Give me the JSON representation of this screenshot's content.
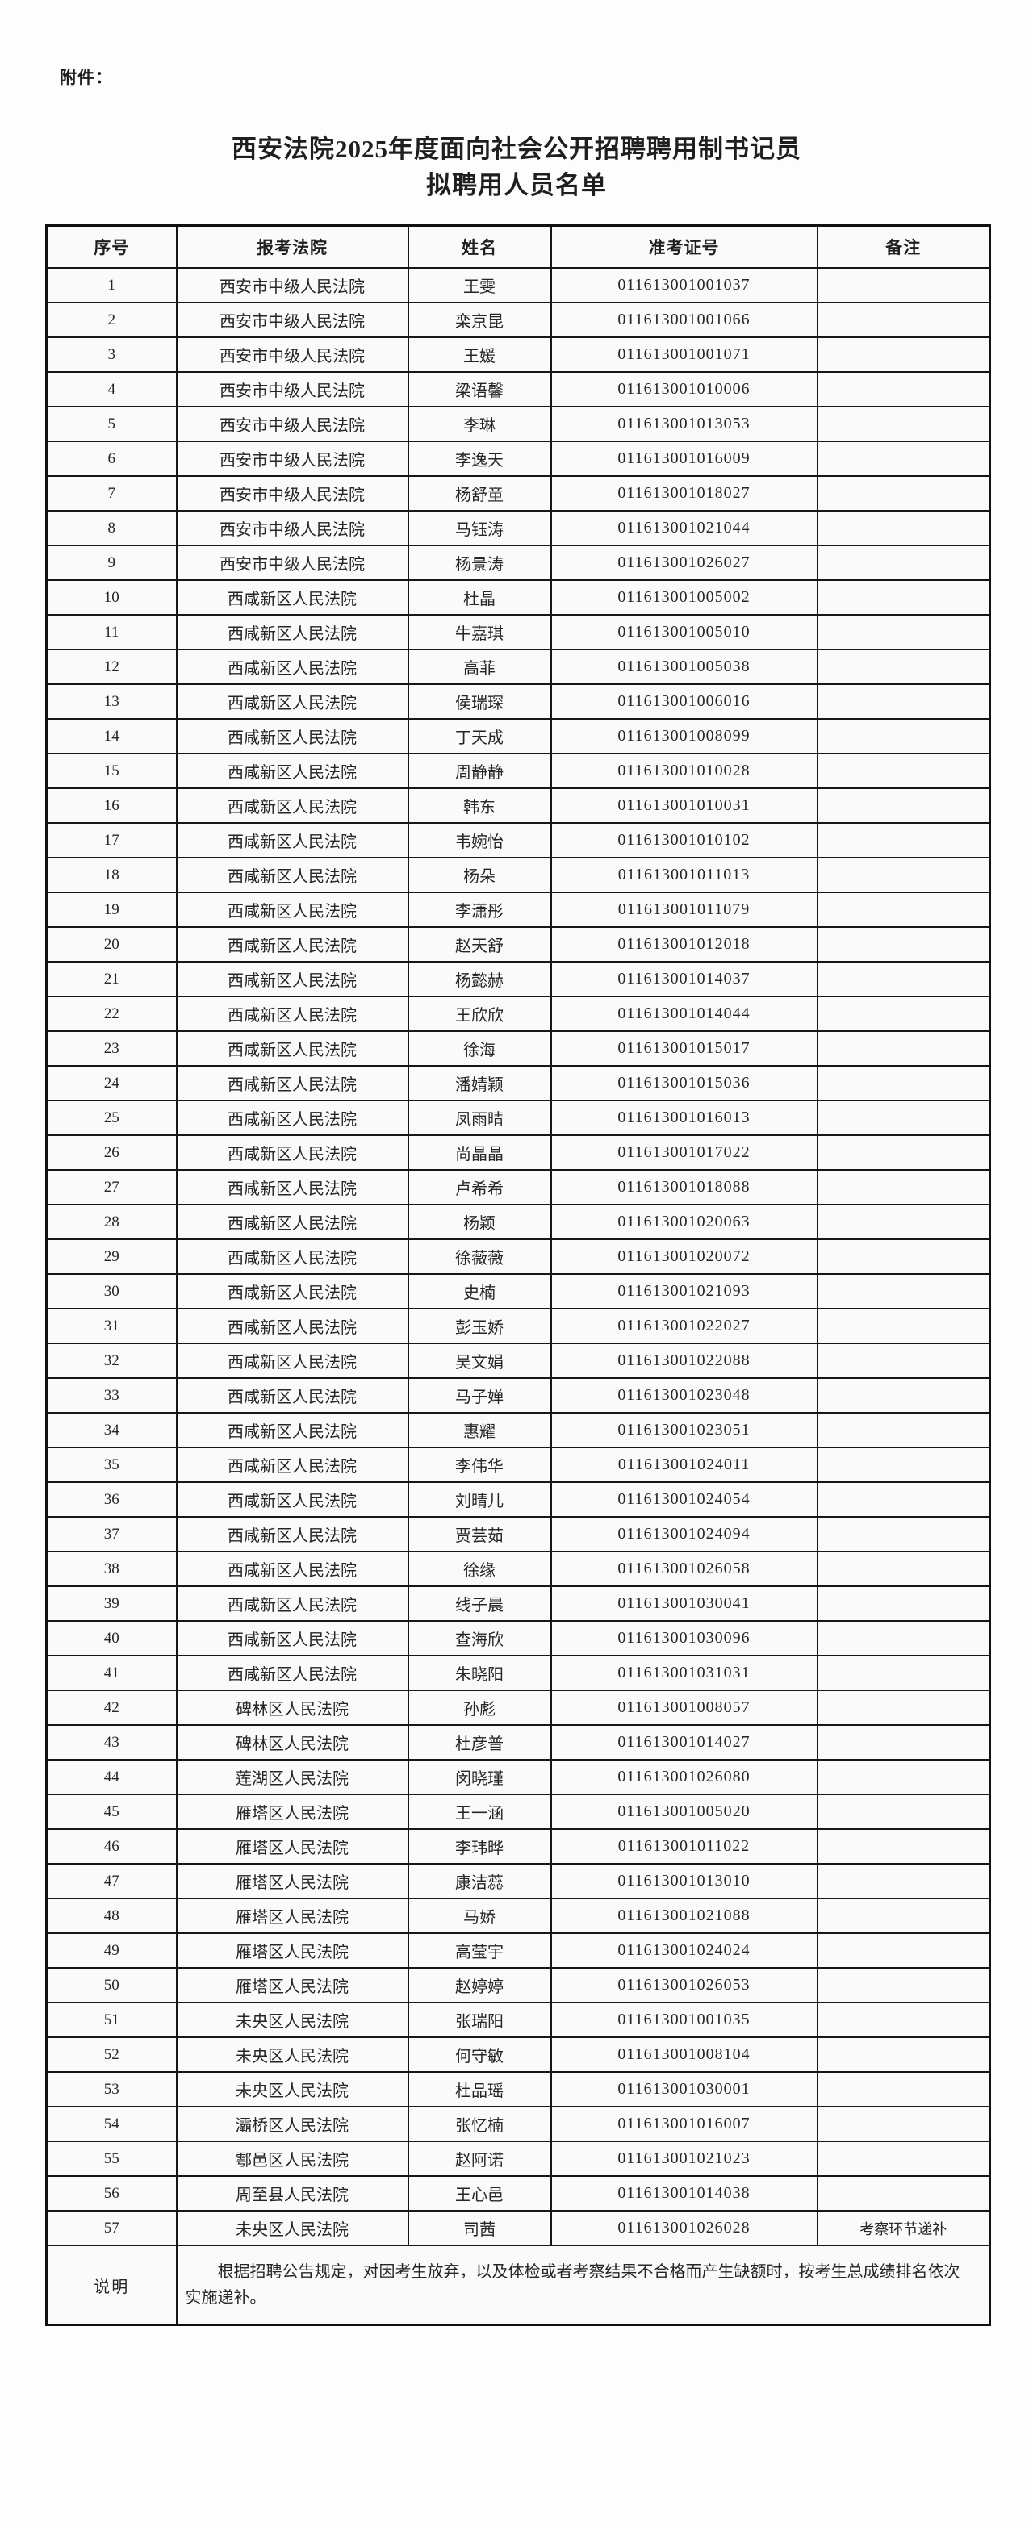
{
  "attachment_label": "附件：",
  "title_line1": "西安法院2025年度面向社会公开招聘聘用制书记员",
  "title_line2": "拟聘用人员名单",
  "table": {
    "headers": [
      "序号",
      "报考法院",
      "姓名",
      "准考证号",
      "备注"
    ],
    "rows": [
      [
        "1",
        "西安市中级人民法院",
        "王雯",
        "011613001001037",
        ""
      ],
      [
        "2",
        "西安市中级人民法院",
        "栾京昆",
        "011613001001066",
        ""
      ],
      [
        "3",
        "西安市中级人民法院",
        "王媛",
        "011613001001071",
        ""
      ],
      [
        "4",
        "西安市中级人民法院",
        "梁语馨",
        "011613001010006",
        ""
      ],
      [
        "5",
        "西安市中级人民法院",
        "李琳",
        "011613001013053",
        ""
      ],
      [
        "6",
        "西安市中级人民法院",
        "李逸天",
        "011613001016009",
        ""
      ],
      [
        "7",
        "西安市中级人民法院",
        "杨舒童",
        "011613001018027",
        ""
      ],
      [
        "8",
        "西安市中级人民法院",
        "马钰涛",
        "011613001021044",
        ""
      ],
      [
        "9",
        "西安市中级人民法院",
        "杨景涛",
        "011613001026027",
        ""
      ],
      [
        "10",
        "西咸新区人民法院",
        "杜晶",
        "011613001005002",
        ""
      ],
      [
        "11",
        "西咸新区人民法院",
        "牛嘉琪",
        "011613001005010",
        ""
      ],
      [
        "12",
        "西咸新区人民法院",
        "高菲",
        "011613001005038",
        ""
      ],
      [
        "13",
        "西咸新区人民法院",
        "侯瑞琛",
        "011613001006016",
        ""
      ],
      [
        "14",
        "西咸新区人民法院",
        "丁天成",
        "011613001008099",
        ""
      ],
      [
        "15",
        "西咸新区人民法院",
        "周静静",
        "011613001010028",
        ""
      ],
      [
        "16",
        "西咸新区人民法院",
        "韩东",
        "011613001010031",
        ""
      ],
      [
        "17",
        "西咸新区人民法院",
        "韦婉怡",
        "011613001010102",
        ""
      ],
      [
        "18",
        "西咸新区人民法院",
        "杨朵",
        "011613001011013",
        ""
      ],
      [
        "19",
        "西咸新区人民法院",
        "李潇彤",
        "011613001011079",
        ""
      ],
      [
        "20",
        "西咸新区人民法院",
        "赵天舒",
        "011613001012018",
        ""
      ],
      [
        "21",
        "西咸新区人民法院",
        "杨懿赫",
        "011613001014037",
        ""
      ],
      [
        "22",
        "西咸新区人民法院",
        "王欣欣",
        "011613001014044",
        ""
      ],
      [
        "23",
        "西咸新区人民法院",
        "徐海",
        "011613001015017",
        ""
      ],
      [
        "24",
        "西咸新区人民法院",
        "潘婧颖",
        "011613001015036",
        ""
      ],
      [
        "25",
        "西咸新区人民法院",
        "凤雨晴",
        "011613001016013",
        ""
      ],
      [
        "26",
        "西咸新区人民法院",
        "尚晶晶",
        "011613001017022",
        ""
      ],
      [
        "27",
        "西咸新区人民法院",
        "卢希希",
        "011613001018088",
        ""
      ],
      [
        "28",
        "西咸新区人民法院",
        "杨颖",
        "011613001020063",
        ""
      ],
      [
        "29",
        "西咸新区人民法院",
        "徐薇薇",
        "011613001020072",
        ""
      ],
      [
        "30",
        "西咸新区人民法院",
        "史楠",
        "011613001021093",
        ""
      ],
      [
        "31",
        "西咸新区人民法院",
        "彭玉娇",
        "011613001022027",
        ""
      ],
      [
        "32",
        "西咸新区人民法院",
        "吴文娟",
        "011613001022088",
        ""
      ],
      [
        "33",
        "西咸新区人民法院",
        "马子婵",
        "011613001023048",
        ""
      ],
      [
        "34",
        "西咸新区人民法院",
        "惠耀",
        "011613001023051",
        ""
      ],
      [
        "35",
        "西咸新区人民法院",
        "李伟华",
        "011613001024011",
        ""
      ],
      [
        "36",
        "西咸新区人民法院",
        "刘晴儿",
        "011613001024054",
        ""
      ],
      [
        "37",
        "西咸新区人民法院",
        "贾芸茹",
        "011613001024094",
        ""
      ],
      [
        "38",
        "西咸新区人民法院",
        "徐缘",
        "011613001026058",
        ""
      ],
      [
        "39",
        "西咸新区人民法院",
        "线子晨",
        "011613001030041",
        ""
      ],
      [
        "40",
        "西咸新区人民法院",
        "查海欣",
        "011613001030096",
        ""
      ],
      [
        "41",
        "西咸新区人民法院",
        "朱晓阳",
        "011613001031031",
        ""
      ],
      [
        "42",
        "碑林区人民法院",
        "孙彪",
        "011613001008057",
        ""
      ],
      [
        "43",
        "碑林区人民法院",
        "杜彦普",
        "011613001014027",
        ""
      ],
      [
        "44",
        "莲湖区人民法院",
        "闵晓瑾",
        "011613001026080",
        ""
      ],
      [
        "45",
        "雁塔区人民法院",
        "王一涵",
        "011613001005020",
        ""
      ],
      [
        "46",
        "雁塔区人民法院",
        "李玮晔",
        "011613001011022",
        ""
      ],
      [
        "47",
        "雁塔区人民法院",
        "康洁蕊",
        "011613001013010",
        ""
      ],
      [
        "48",
        "雁塔区人民法院",
        "马娇",
        "011613001021088",
        ""
      ],
      [
        "49",
        "雁塔区人民法院",
        "高莹宇",
        "011613001024024",
        ""
      ],
      [
        "50",
        "雁塔区人民法院",
        "赵婷婷",
        "011613001026053",
        ""
      ],
      [
        "51",
        "未央区人民法院",
        "张瑞阳",
        "011613001001035",
        ""
      ],
      [
        "52",
        "未央区人民法院",
        "何守敏",
        "011613001008104",
        ""
      ],
      [
        "53",
        "未央区人民法院",
        "杜品瑶",
        "011613001030001",
        ""
      ],
      [
        "54",
        "灞桥区人民法院",
        "张忆楠",
        "011613001016007",
        ""
      ],
      [
        "55",
        "鄠邑区人民法院",
        "赵阿诺",
        "011613001021023",
        ""
      ],
      [
        "56",
        "周至县人民法院",
        "王心邑",
        "011613001014038",
        ""
      ],
      [
        "57",
        "未央区人民法院",
        "司茜",
        "011613001026028",
        "考察环节递补"
      ]
    ],
    "note_label": "说明",
    "note_text": "根据招聘公告规定，对因考生放弃，以及体检或者考察结果不合格而产生缺额时，按考生总成绩排名依次实施递补。"
  }
}
